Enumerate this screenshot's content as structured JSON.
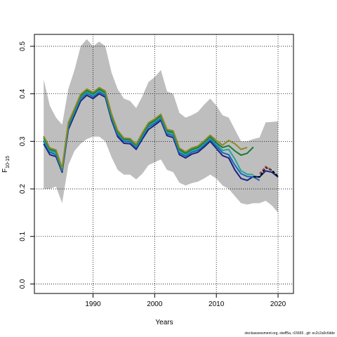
{
  "chart_data": {
    "type": "line",
    "xlabel": "Years",
    "ylabel_main": "F",
    "ylabel_sub": "10-15",
    "xlim": [
      1980.5,
      2022.5
    ],
    "ylim": [
      -0.02,
      0.525
    ],
    "xticks": [
      1990,
      2000,
      2010,
      2020
    ],
    "yticks": [
      0.0,
      0.1,
      0.2,
      0.3,
      0.4,
      0.5
    ],
    "grid": "dotted",
    "footnote": "stockassessment.org, stwff5a, r15665 , git: ec2c2a0c6dde",
    "band": {
      "color": "#bebebe",
      "x": [
        1982,
        1983,
        1984,
        1985,
        1986,
        1987,
        1988,
        1989,
        1990,
        1991,
        1992,
        1993,
        1994,
        1995,
        1996,
        1997,
        1998,
        1999,
        2000,
        2001,
        2002,
        2003,
        2004,
        2005,
        2006,
        2007,
        2008,
        2009,
        2010,
        2011,
        2012,
        2013,
        2014,
        2015,
        2016,
        2017,
        2018,
        2019,
        2020
      ],
      "upper": [
        0.43,
        0.375,
        0.35,
        0.335,
        0.41,
        0.45,
        0.5,
        0.515,
        0.5,
        0.51,
        0.5,
        0.445,
        0.41,
        0.39,
        0.385,
        0.37,
        0.395,
        0.425,
        0.435,
        0.45,
        0.405,
        0.4,
        0.36,
        0.35,
        0.355,
        0.362,
        0.377,
        0.39,
        0.375,
        0.355,
        0.35,
        0.325,
        0.3,
        0.3,
        0.305,
        0.308,
        0.34,
        0.341,
        0.342
      ],
      "lower": [
        0.2,
        0.2,
        0.205,
        0.17,
        0.25,
        0.28,
        0.295,
        0.305,
        0.31,
        0.31,
        0.3,
        0.267,
        0.24,
        0.23,
        0.23,
        0.22,
        0.232,
        0.25,
        0.256,
        0.262,
        0.24,
        0.235,
        0.213,
        0.207,
        0.212,
        0.215,
        0.222,
        0.23,
        0.222,
        0.207,
        0.2,
        0.185,
        0.17,
        0.167,
        0.17,
        0.17,
        0.175,
        0.165,
        0.15
      ]
    },
    "series": [
      {
        "color": "#1a237e",
        "x": [
          1982,
          1983,
          1984,
          1985,
          1986,
          1987,
          1988,
          1989,
          1990,
          1991,
          1992,
          1993,
          1994,
          1995,
          1996,
          1997,
          1998,
          1999,
          2000,
          2001,
          2002,
          2003,
          2004,
          2005,
          2006,
          2007,
          2008,
          2009,
          2010,
          2011,
          2012,
          2013,
          2014,
          2015,
          2016,
          2017,
          2018,
          2019,
          2020
        ],
        "values": [
          0.295,
          0.272,
          0.268,
          0.235,
          0.325,
          0.355,
          0.385,
          0.397,
          0.39,
          0.4,
          0.393,
          0.345,
          0.31,
          0.296,
          0.295,
          0.283,
          0.305,
          0.325,
          0.334,
          0.344,
          0.312,
          0.308,
          0.272,
          0.265,
          0.273,
          0.277,
          0.288,
          0.3,
          0.285,
          0.27,
          0.265,
          0.24,
          0.222,
          0.218,
          0.226,
          0.225,
          0.238,
          0.235,
          0.225
        ]
      },
      {
        "color": "#1565c0",
        "x": [
          1982,
          1983,
          1984,
          1985,
          1986,
          1987,
          1988,
          1989,
          1990,
          1991,
          1992,
          1993,
          1994,
          1995,
          1996,
          1997,
          1998,
          1999,
          2000,
          2001,
          2002,
          2003,
          2004,
          2005,
          2006,
          2007,
          2008,
          2009,
          2010,
          2011,
          2012,
          2013,
          2014,
          2015,
          2016,
          2017
        ],
        "values": [
          0.3,
          0.277,
          0.272,
          0.238,
          0.33,
          0.36,
          0.39,
          0.401,
          0.394,
          0.404,
          0.397,
          0.349,
          0.314,
          0.3,
          0.299,
          0.287,
          0.309,
          0.33,
          0.338,
          0.348,
          0.316,
          0.312,
          0.276,
          0.269,
          0.277,
          0.281,
          0.292,
          0.304,
          0.29,
          0.276,
          0.272,
          0.25,
          0.232,
          0.226,
          0.225,
          0.218
        ]
      },
      {
        "color": "#26a69a",
        "x": [
          1982,
          1983,
          1984,
          1985,
          1986,
          1987,
          1988,
          1989,
          1990,
          1991,
          1992,
          1993,
          1994,
          1995,
          1996,
          1997,
          1998,
          1999,
          2000,
          2001,
          2002,
          2003,
          2004,
          2005,
          2006,
          2007,
          2008,
          2009,
          2010,
          2011,
          2012,
          2013,
          2014,
          2015,
          2016
        ],
        "values": [
          0.303,
          0.28,
          0.276,
          0.24,
          0.333,
          0.363,
          0.393,
          0.404,
          0.397,
          0.407,
          0.4,
          0.352,
          0.317,
          0.303,
          0.302,
          0.29,
          0.312,
          0.333,
          0.341,
          0.351,
          0.319,
          0.316,
          0.28,
          0.272,
          0.28,
          0.284,
          0.295,
          0.307,
          0.294,
          0.281,
          0.283,
          0.263,
          0.238,
          0.231,
          0.23
        ]
      },
      {
        "color": "#1b7a3a",
        "x": [
          1982,
          1983,
          1984,
          1985,
          1986,
          1987,
          1988,
          1989,
          1990,
          1991,
          1992,
          1993,
          1994,
          1995,
          1996,
          1997,
          1998,
          1999,
          2000,
          2001,
          2002,
          2003,
          2004,
          2005,
          2006,
          2007,
          2008,
          2009,
          2010,
          2011,
          2012,
          2013,
          2014,
          2015,
          2016
        ],
        "values": [
          0.308,
          0.283,
          0.279,
          0.242,
          0.336,
          0.366,
          0.396,
          0.407,
          0.4,
          0.41,
          0.403,
          0.355,
          0.32,
          0.305,
          0.304,
          0.292,
          0.315,
          0.336,
          0.344,
          0.354,
          0.322,
          0.319,
          0.283,
          0.275,
          0.283,
          0.287,
          0.298,
          0.31,
          0.297,
          0.287,
          0.291,
          0.28,
          0.271,
          0.275,
          0.288
        ]
      },
      {
        "color": "#8a8a2a",
        "x": [
          1982,
          1983,
          1984,
          1985,
          1986,
          1987,
          1988,
          1989,
          1990,
          1991,
          1992,
          1993,
          1994,
          1995,
          1996,
          1997,
          1998,
          1999,
          2000,
          2001,
          2002,
          2003,
          2004,
          2005,
          2006,
          2007,
          2008,
          2009,
          2010,
          2011,
          2012,
          2013,
          2014,
          2015
        ],
        "values": [
          0.311,
          0.286,
          0.282,
          0.244,
          0.339,
          0.369,
          0.399,
          0.41,
          0.403,
          0.413,
          0.406,
          0.358,
          0.323,
          0.307,
          0.306,
          0.294,
          0.318,
          0.339,
          0.347,
          0.357,
          0.325,
          0.322,
          0.286,
          0.278,
          0.286,
          0.29,
          0.301,
          0.313,
          0.302,
          0.292,
          0.302,
          0.295,
          0.283,
          0.287
        ]
      },
      {
        "color": "#000000",
        "dashed": true,
        "x": [
          2016,
          2017,
          2018,
          2019,
          2020
        ],
        "values": [
          0.226,
          0.225,
          0.245,
          0.239,
          0.226
        ]
      },
      {
        "color": "#9e4a4a",
        "dashed": true,
        "x": [
          2017,
          2018,
          2019
        ],
        "values": [
          0.232,
          0.247,
          0.24
        ]
      }
    ]
  }
}
